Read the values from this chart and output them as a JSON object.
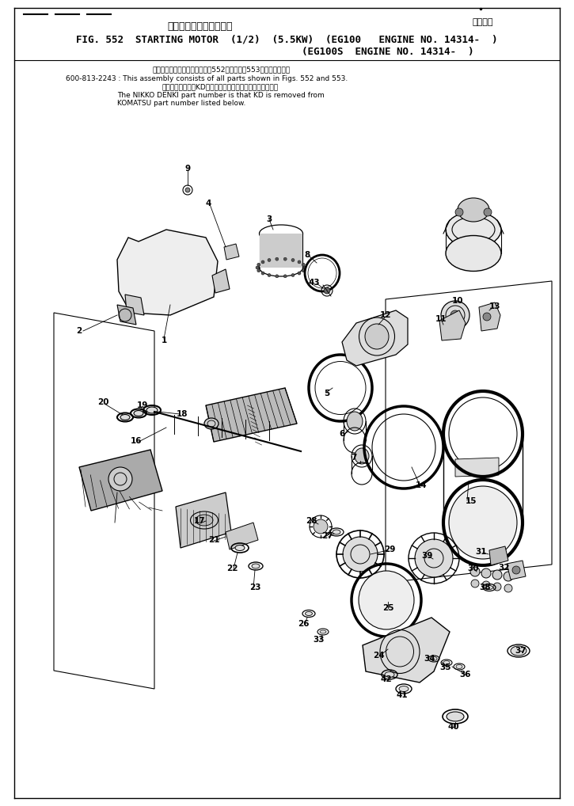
{
  "title_jp": "スターティング　モータ",
  "applicable_jp": "適用号機",
  "title_en_main": "FIG. 552  STARTING MOTOR  (1/2)  (5.5KW)  (EG100   ENGINE NO. 14314-  )",
  "title_en_sub": "(EG100S  ENGINE NO. 14314-  )",
  "note1_jp": "このアセンブリの構成部品は第552図および第553図を含みます。",
  "note1_en": "600-813-2243 : This assembly consists of all parts shown in Figs. 552 and 553.",
  "note2_jp": "品番のメーカ記号KDを除いたものが日興電機の品番です。",
  "note2_en1": "The NIKKO DENKI part number is that KD is removed from",
  "note2_en2": "KOMATSU part number listed below.",
  "bg_color": "#ffffff",
  "lc": "#000000"
}
